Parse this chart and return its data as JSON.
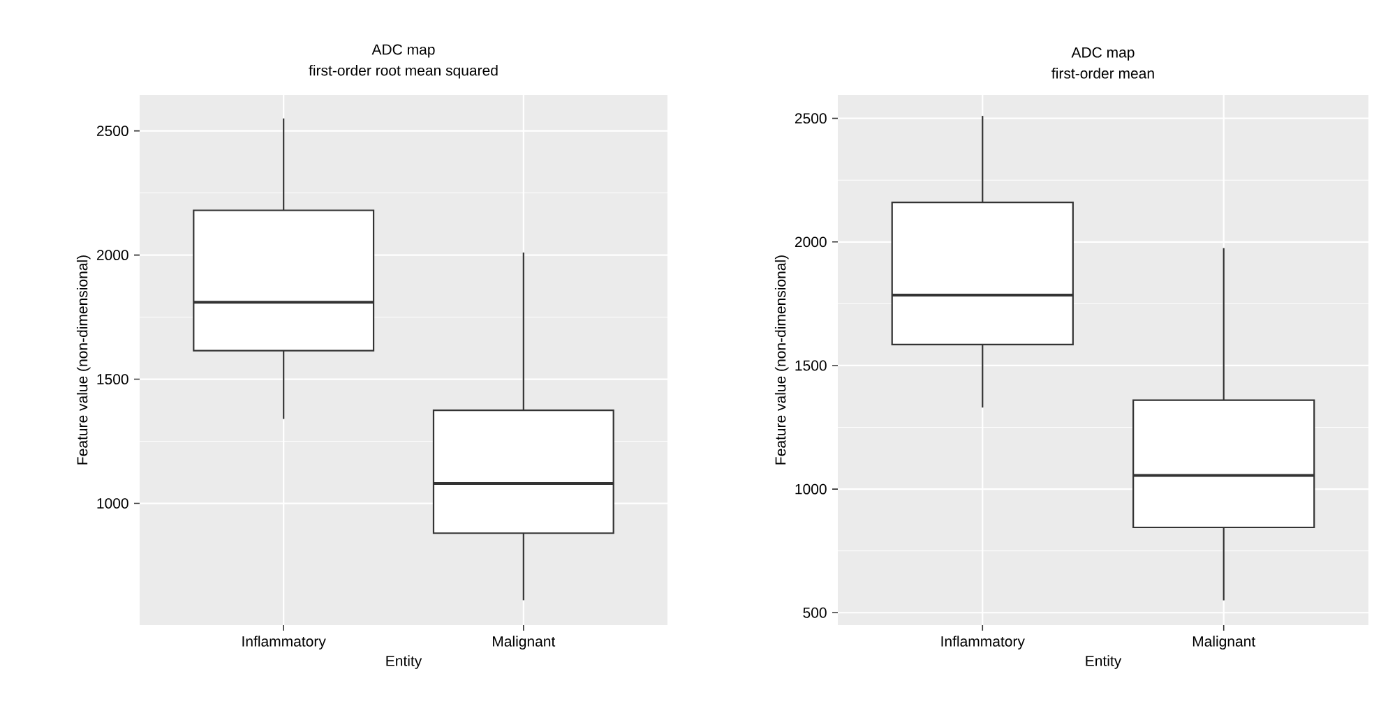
{
  "chart_data": [
    {
      "type": "box",
      "title": "ADC map",
      "subtitle": "first-order root mean squared",
      "xlabel": "Entity",
      "ylabel": "Feature value (non-dimensional)",
      "categories": [
        "Inflammatory",
        "Malignant"
      ],
      "color": "#333333",
      "boxes": [
        {
          "low": 1340,
          "q1": 1615,
          "median": 1810,
          "q3": 2180,
          "high": 2550
        },
        {
          "low": 610,
          "q1": 880,
          "median": 1080,
          "q3": 1375,
          "high": 2010
        }
      ],
      "ylim": [
        510,
        2645
      ],
      "yticks": [
        1000,
        1500,
        2000,
        2500
      ],
      "grid": true
    },
    {
      "type": "box",
      "title": "ADC map",
      "subtitle": "first-order mean",
      "xlabel": "Entity",
      "ylabel": "Feature value (non-dimensional)",
      "categories": [
        "Inflammatory",
        "Malignant"
      ],
      "color": "#333333",
      "boxes": [
        {
          "low": 1330,
          "q1": 1585,
          "median": 1785,
          "q3": 2160,
          "high": 2510
        },
        {
          "low": 550,
          "q1": 845,
          "median": 1055,
          "q3": 1360,
          "high": 1975
        }
      ],
      "ylim": [
        450,
        2595
      ],
      "yticks": [
        500,
        1000,
        1500,
        2000,
        2500
      ],
      "grid": true
    }
  ]
}
